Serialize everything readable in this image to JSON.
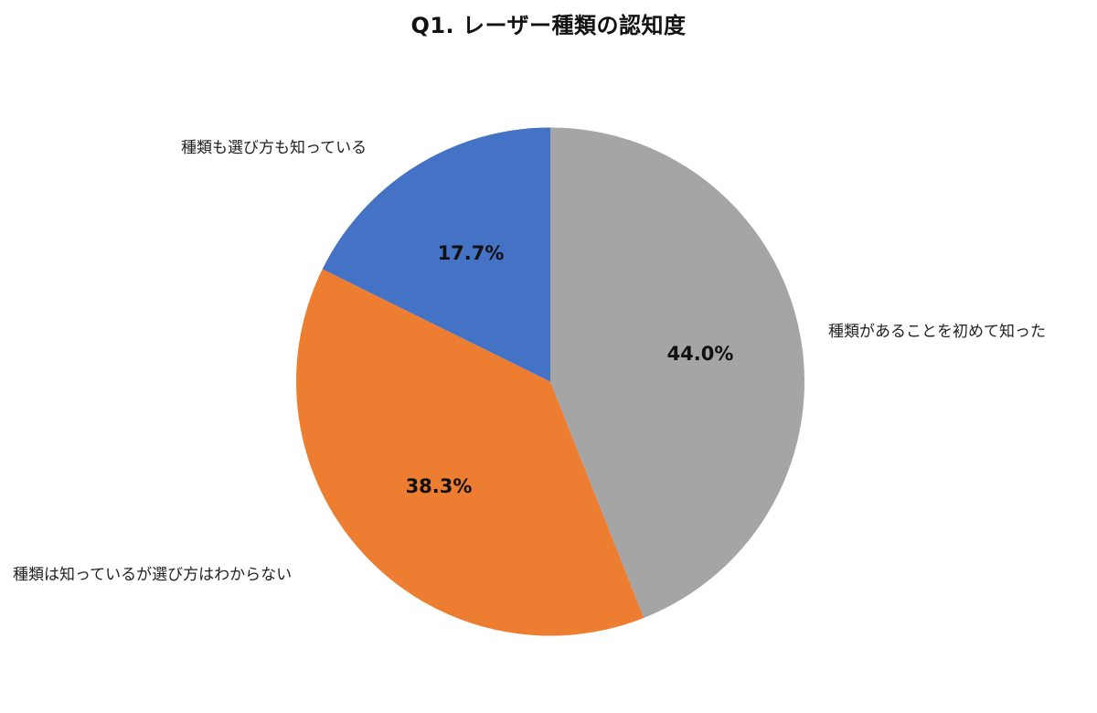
{
  "chart_data": {
    "type": "pie",
    "title": "Q1. レーザー種類の認知度",
    "categories": [
      "種類があることを初めて知った",
      "種類は知っているが選び方はわからない",
      "種類も選び方も知っている"
    ],
    "values": [
      44.0,
      38.3,
      17.7
    ],
    "value_labels": [
      "44.0%",
      "38.3%",
      "17.7%"
    ],
    "colors": [
      "#A5A5A5",
      "#ED7D31",
      "#4472C4"
    ],
    "start_angle_deg": 0,
    "direction": "clockwise",
    "legend": "none (category labels placed outside slices)"
  },
  "title": "Q1. レーザー種類の認知度",
  "slices": [
    {
      "name": "種類があることを初めて知った",
      "pct_label": "44.0%"
    },
    {
      "name": "種類は知っているが選び方はわからない",
      "pct_label": "38.3%"
    },
    {
      "name": "種類も選び方も知っている",
      "pct_label": "17.7%"
    }
  ]
}
